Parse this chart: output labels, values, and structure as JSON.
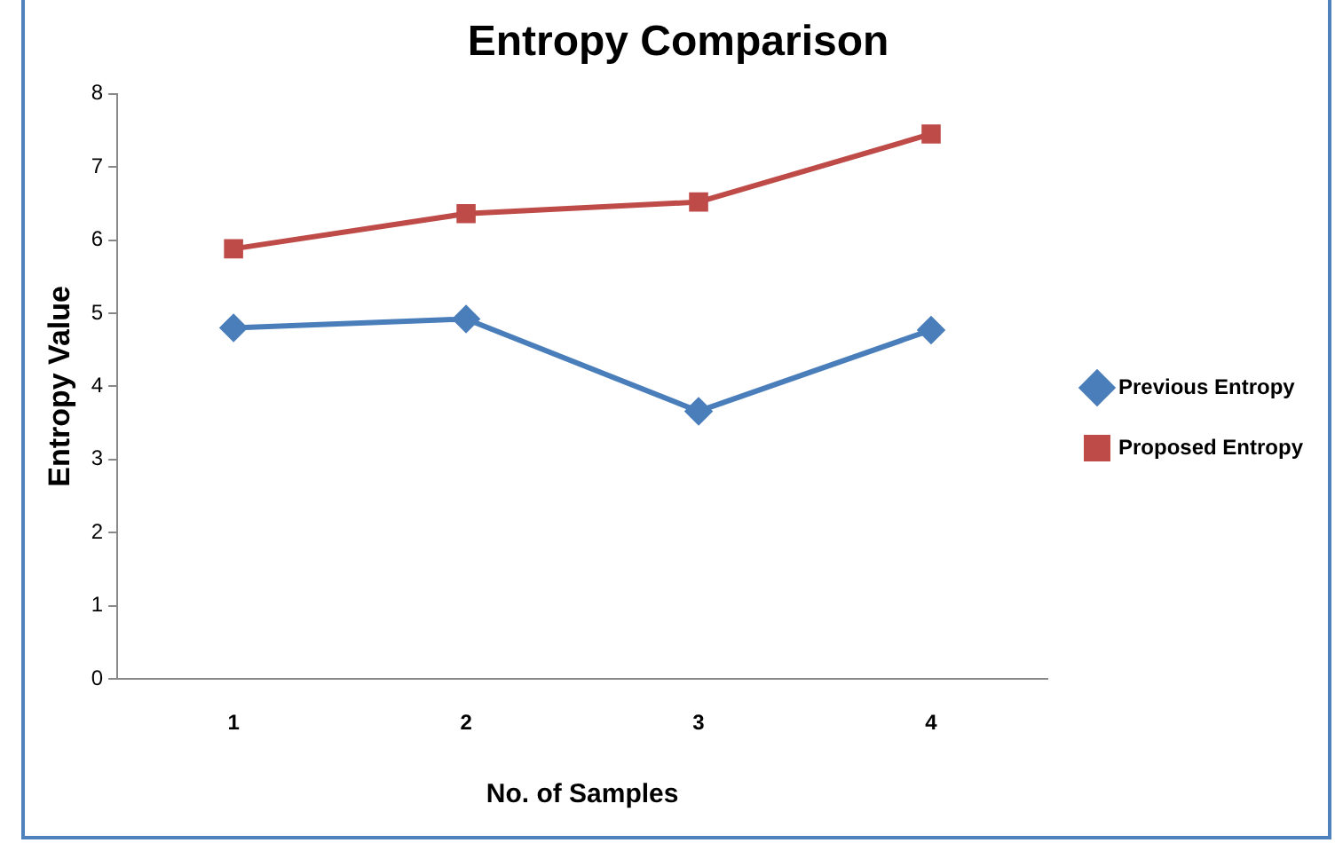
{
  "chart_data": {
    "type": "line",
    "title": "Entropy Comparison",
    "xlabel": "No. of Samples",
    "ylabel": "Entropy Value",
    "categories": [
      "1",
      "2",
      "3",
      "4"
    ],
    "series": [
      {
        "name": "Previous Entropy",
        "color": "#4a7ebb",
        "marker": "diamond",
        "values": [
          4.8,
          4.92,
          3.66,
          4.77
        ]
      },
      {
        "name": "Proposed Entropy",
        "color": "#be4b48",
        "marker": "square",
        "values": [
          5.88,
          6.36,
          6.52,
          7.45
        ]
      }
    ],
    "ylim": [
      0,
      8
    ],
    "yticks": [
      0,
      1,
      2,
      3,
      4,
      5,
      6,
      7,
      8
    ],
    "grid": false,
    "legend": "right",
    "line_style": "solid"
  }
}
